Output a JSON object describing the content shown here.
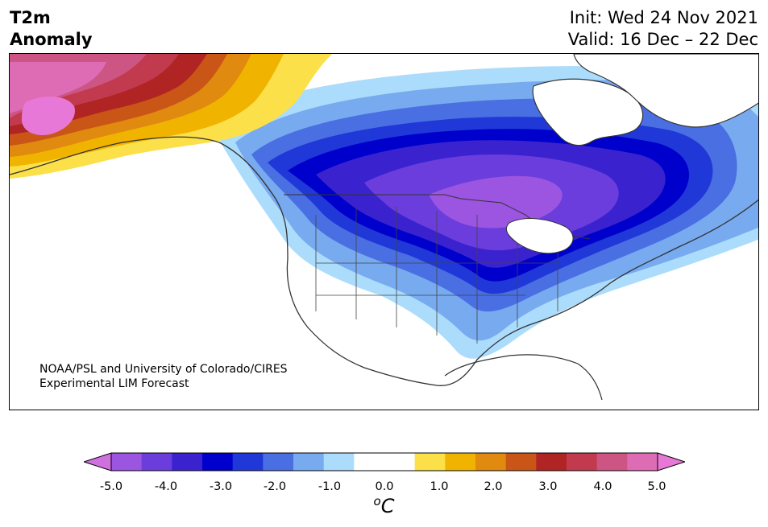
{
  "title": {
    "line1": "T2m",
    "line2": "Anomaly"
  },
  "dates": {
    "init": "Init: Wed 24 Nov 2021",
    "valid": "Valid: 16 Dec – 22 Dec"
  },
  "credit": {
    "line1": "NOAA/PSL and University of Colorado/CIRES",
    "line2": "Experimental LIM Forecast"
  },
  "colorbar": {
    "ticks": [
      "-5.0",
      "-4.0",
      "-3.0",
      "-2.0",
      "-1.0",
      "0.0",
      "1.0",
      "2.0",
      "3.0",
      "4.0",
      "5.0"
    ],
    "unit_base": "o",
    "unit_main": "C",
    "colors": [
      "#9b55e0",
      "#6a3ddc",
      "#3a22cf",
      "#0000cc",
      "#2038d8",
      "#4a6fe2",
      "#78aaf0",
      "#acdcfb",
      "#ffffff",
      "#ffffff",
      "#fbe04a",
      "#f0b400",
      "#e08a10",
      "#c95516",
      "#b02424",
      "#c23a4e",
      "#cc5584",
      "#de6cb4"
    ],
    "extend_low": "#d070e0",
    "extend_high": "#e878d8"
  }
}
